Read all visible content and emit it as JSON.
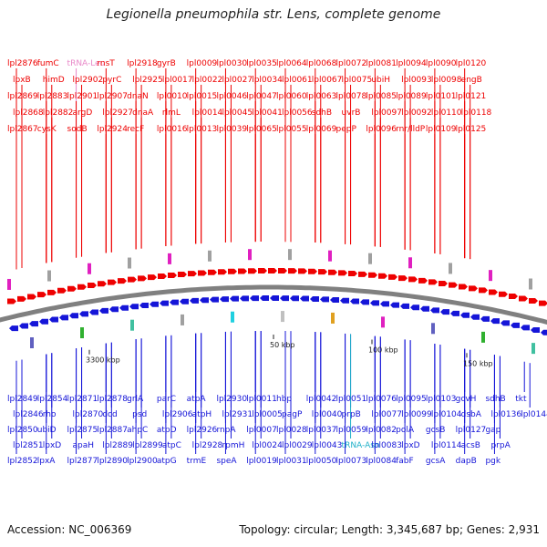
{
  "title": "Legionella pneumophila str. Lens, complete genome",
  "footer": {
    "accession": "Accession: NC_006369",
    "summary": "Topology: circular; Length: 3,345,687 bp; Genes: 2,931"
  },
  "colors": {
    "forward": "#ee0000",
    "reverse": "#1515d8",
    "trna_leu": "#e888c8",
    "trna_asn": "#20b0c8",
    "backbone": "#808080"
  },
  "ticks": [
    {
      "label": "3300 kbp"
    },
    {
      "label": "50 kbp"
    },
    {
      "label": "100 kbp"
    },
    {
      "label": "150 kbp"
    }
  ],
  "top_labels": [
    {
      "text": "lpl2876",
      "color": "red"
    },
    {
      "text": "lpxB",
      "color": "red"
    },
    {
      "text": "lpl2869",
      "color": "red"
    },
    {
      "text": "lpl2868",
      "color": "red"
    },
    {
      "text": "lpl2867",
      "color": "red"
    },
    {
      "text": "fumC",
      "color": "red"
    },
    {
      "text": "himD",
      "color": "red"
    },
    {
      "text": "lpl2883",
      "color": "red"
    },
    {
      "text": "lpl2882",
      "color": "red"
    },
    {
      "text": "cysK",
      "color": "red"
    },
    {
      "text": "tRNA-Leu",
      "color": "pink"
    },
    {
      "text": "lpl2902",
      "color": "red"
    },
    {
      "text": "lpl2901",
      "color": "red"
    },
    {
      "text": "argD",
      "color": "red"
    },
    {
      "text": "sodB",
      "color": "red"
    },
    {
      "text": "rnsT",
      "color": "red"
    },
    {
      "text": "pyrC",
      "color": "red"
    },
    {
      "text": "lpl2907",
      "color": "red"
    },
    {
      "text": "lpl2927",
      "color": "red"
    },
    {
      "text": "lpl2924",
      "color": "red"
    },
    {
      "text": "lpl2918",
      "color": "red"
    },
    {
      "text": "lpl2925",
      "color": "red"
    },
    {
      "text": "dnaN",
      "color": "red"
    },
    {
      "text": "dnaA",
      "color": "red"
    },
    {
      "text": "recF",
      "color": "red"
    },
    {
      "text": "gyrB",
      "color": "red"
    },
    {
      "text": "lpl0017",
      "color": "red"
    },
    {
      "text": "lpl0010",
      "color": "red"
    },
    {
      "text": "rlmL",
      "color": "red"
    },
    {
      "text": "lpl0016",
      "color": "red"
    },
    {
      "text": "lpl0009",
      "color": "red"
    },
    {
      "text": "lpl0022",
      "color": "red"
    },
    {
      "text": "lpl0015",
      "color": "red"
    },
    {
      "text": "lpl0014",
      "color": "red"
    },
    {
      "text": "lpl0013",
      "color": "red"
    },
    {
      "text": "lpl0030",
      "color": "red"
    },
    {
      "text": "lpl0027",
      "color": "red"
    },
    {
      "text": "lpl0046",
      "color": "red"
    },
    {
      "text": "lpl0045",
      "color": "red"
    },
    {
      "text": "lpl0039",
      "color": "red"
    },
    {
      "text": "lpl0035",
      "color": "red"
    },
    {
      "text": "lpl0034",
      "color": "red"
    },
    {
      "text": "lpl0047",
      "color": "red"
    },
    {
      "text": "lpl0041",
      "color": "red"
    },
    {
      "text": "lpl0065",
      "color": "red"
    },
    {
      "text": "lpl0064",
      "color": "red"
    },
    {
      "text": "lpl0061",
      "color": "red"
    },
    {
      "text": "lpl0060",
      "color": "red"
    },
    {
      "text": "lpl0056",
      "color": "red"
    },
    {
      "text": "lpl0055",
      "color": "red"
    },
    {
      "text": "lpl0068",
      "color": "red"
    },
    {
      "text": "lpl0067",
      "color": "red"
    },
    {
      "text": "lpl0063",
      "color": "red"
    },
    {
      "text": "sdhB",
      "color": "red"
    },
    {
      "text": "lpl0069",
      "color": "red"
    },
    {
      "text": "lpl0072",
      "color": "red"
    },
    {
      "text": "lpl0075",
      "color": "red"
    },
    {
      "text": "lpl0078",
      "color": "red"
    },
    {
      "text": "uvrB",
      "color": "red"
    },
    {
      "text": "pepP",
      "color": "red"
    },
    {
      "text": "lpl0081",
      "color": "red"
    },
    {
      "text": "ubiH",
      "color": "red"
    },
    {
      "text": "lpl0085",
      "color": "red"
    },
    {
      "text": "lpl0097",
      "color": "red"
    },
    {
      "text": "lpl0096",
      "color": "red"
    },
    {
      "text": "lpl0094",
      "color": "red"
    },
    {
      "text": "lpl0093",
      "color": "red"
    },
    {
      "text": "lpl0089",
      "color": "red"
    },
    {
      "text": "lpl0092",
      "color": "red"
    },
    {
      "text": "rnr/lldP",
      "color": "red"
    },
    {
      "text": "lpl0090",
      "color": "red"
    },
    {
      "text": "lpl0098",
      "color": "red"
    },
    {
      "text": "lpl0101",
      "color": "red"
    },
    {
      "text": "lpl0110",
      "color": "red"
    },
    {
      "text": "lpl0109",
      "color": "red"
    },
    {
      "text": "lpl0120",
      "color": "red"
    },
    {
      "text": "engB",
      "color": "red"
    },
    {
      "text": "lpl0121",
      "color": "red"
    },
    {
      "text": "lpl0118",
      "color": "red"
    },
    {
      "text": "lpl0125",
      "color": "red"
    }
  ],
  "bottom_labels": [
    {
      "text": "lpl2849",
      "color": "blue"
    },
    {
      "text": "lpl2846",
      "color": "blue"
    },
    {
      "text": "lpl2850",
      "color": "blue"
    },
    {
      "text": "lpl2851",
      "color": "blue"
    },
    {
      "text": "lpl2852",
      "color": "blue"
    },
    {
      "text": "lpl2854",
      "color": "blue"
    },
    {
      "text": "rho",
      "color": "blue"
    },
    {
      "text": "ubiD",
      "color": "blue"
    },
    {
      "text": "lpxD",
      "color": "blue"
    },
    {
      "text": "lpxA",
      "color": "blue"
    },
    {
      "text": "lpl2871",
      "color": "blue"
    },
    {
      "text": "lpl2870",
      "color": "blue"
    },
    {
      "text": "lpl2875",
      "color": "blue"
    },
    {
      "text": "apaH",
      "color": "blue"
    },
    {
      "text": "lpl2877",
      "color": "blue"
    },
    {
      "text": "lpl2878",
      "color": "blue"
    },
    {
      "text": "dcd",
      "color": "blue"
    },
    {
      "text": "lpl2887",
      "color": "blue"
    },
    {
      "text": "lpl2889",
      "color": "blue"
    },
    {
      "text": "lpl2890",
      "color": "blue"
    },
    {
      "text": "grlA",
      "color": "blue"
    },
    {
      "text": "psd",
      "color": "blue"
    },
    {
      "text": "ahpC",
      "color": "blue"
    },
    {
      "text": "lpl2899",
      "color": "blue"
    },
    {
      "text": "lpl2900",
      "color": "blue"
    },
    {
      "text": "parC",
      "color": "blue"
    },
    {
      "text": "lpl2906",
      "color": "blue"
    },
    {
      "text": "atpD",
      "color": "blue"
    },
    {
      "text": "atpC",
      "color": "blue"
    },
    {
      "text": "atpG",
      "color": "blue"
    },
    {
      "text": "atpA",
      "color": "blue"
    },
    {
      "text": "atpH",
      "color": "blue"
    },
    {
      "text": "lpl2926",
      "color": "blue"
    },
    {
      "text": "lpl2928",
      "color": "blue"
    },
    {
      "text": "trmE",
      "color": "blue"
    },
    {
      "text": "lpl2930",
      "color": "blue"
    },
    {
      "text": "lpl2931",
      "color": "blue"
    },
    {
      "text": "rnpA",
      "color": "blue"
    },
    {
      "text": "rpmH",
      "color": "blue"
    },
    {
      "text": "speA",
      "color": "blue"
    },
    {
      "text": "lpl0011",
      "color": "blue"
    },
    {
      "text": "lpl0005",
      "color": "blue"
    },
    {
      "text": "lpl0007",
      "color": "blue"
    },
    {
      "text": "lpl0024",
      "color": "blue"
    },
    {
      "text": "lpl0019",
      "color": "blue"
    },
    {
      "text": "hbp",
      "color": "blue"
    },
    {
      "text": "pagP",
      "color": "blue"
    },
    {
      "text": "lpl0028",
      "color": "blue"
    },
    {
      "text": "lpl0029",
      "color": "blue"
    },
    {
      "text": "lpl0031",
      "color": "blue"
    },
    {
      "text": "lpl0042",
      "color": "blue"
    },
    {
      "text": "lpl0040",
      "color": "blue"
    },
    {
      "text": "lpl0037",
      "color": "blue"
    },
    {
      "text": "lpl0043",
      "color": "blue"
    },
    {
      "text": "lpl0050",
      "color": "blue"
    },
    {
      "text": "lpl0051",
      "color": "blue"
    },
    {
      "text": "prpB",
      "color": "blue"
    },
    {
      "text": "lpl0059",
      "color": "blue"
    },
    {
      "text": "tRNA-Asn",
      "color": "cyan"
    },
    {
      "text": "lpl0073",
      "color": "blue"
    },
    {
      "text": "lpl0076",
      "color": "blue"
    },
    {
      "text": "lpl0077",
      "color": "blue"
    },
    {
      "text": "lpl0082",
      "color": "blue"
    },
    {
      "text": "lpl0083",
      "color": "blue"
    },
    {
      "text": "lpl0084",
      "color": "blue"
    },
    {
      "text": "lpl0095",
      "color": "blue"
    },
    {
      "text": "lpl0099",
      "color": "blue"
    },
    {
      "text": "polA",
      "color": "blue"
    },
    {
      "text": "lpxD",
      "color": "blue"
    },
    {
      "text": "fabF",
      "color": "blue"
    },
    {
      "text": "lpl0103",
      "color": "blue"
    },
    {
      "text": "lpl0104",
      "color": "blue"
    },
    {
      "text": "gcsB",
      "color": "blue"
    },
    {
      "text": "lpl0114",
      "color": "blue"
    },
    {
      "text": "gcsA",
      "color": "blue"
    },
    {
      "text": "gcvH",
      "color": "blue"
    },
    {
      "text": "dsbA",
      "color": "blue"
    },
    {
      "text": "lpl0127",
      "color": "blue"
    },
    {
      "text": "acsB",
      "color": "blue"
    },
    {
      "text": "dapB",
      "color": "blue"
    },
    {
      "text": "sdhB",
      "color": "blue"
    },
    {
      "text": "lpl0136",
      "color": "blue"
    },
    {
      "text": "gap",
      "color": "blue"
    },
    {
      "text": "prpA",
      "color": "blue"
    },
    {
      "text": "pgk",
      "color": "blue"
    },
    {
      "text": "tkt",
      "color": "blue"
    },
    {
      "text": "lpl0144",
      "color": "blue"
    }
  ]
}
